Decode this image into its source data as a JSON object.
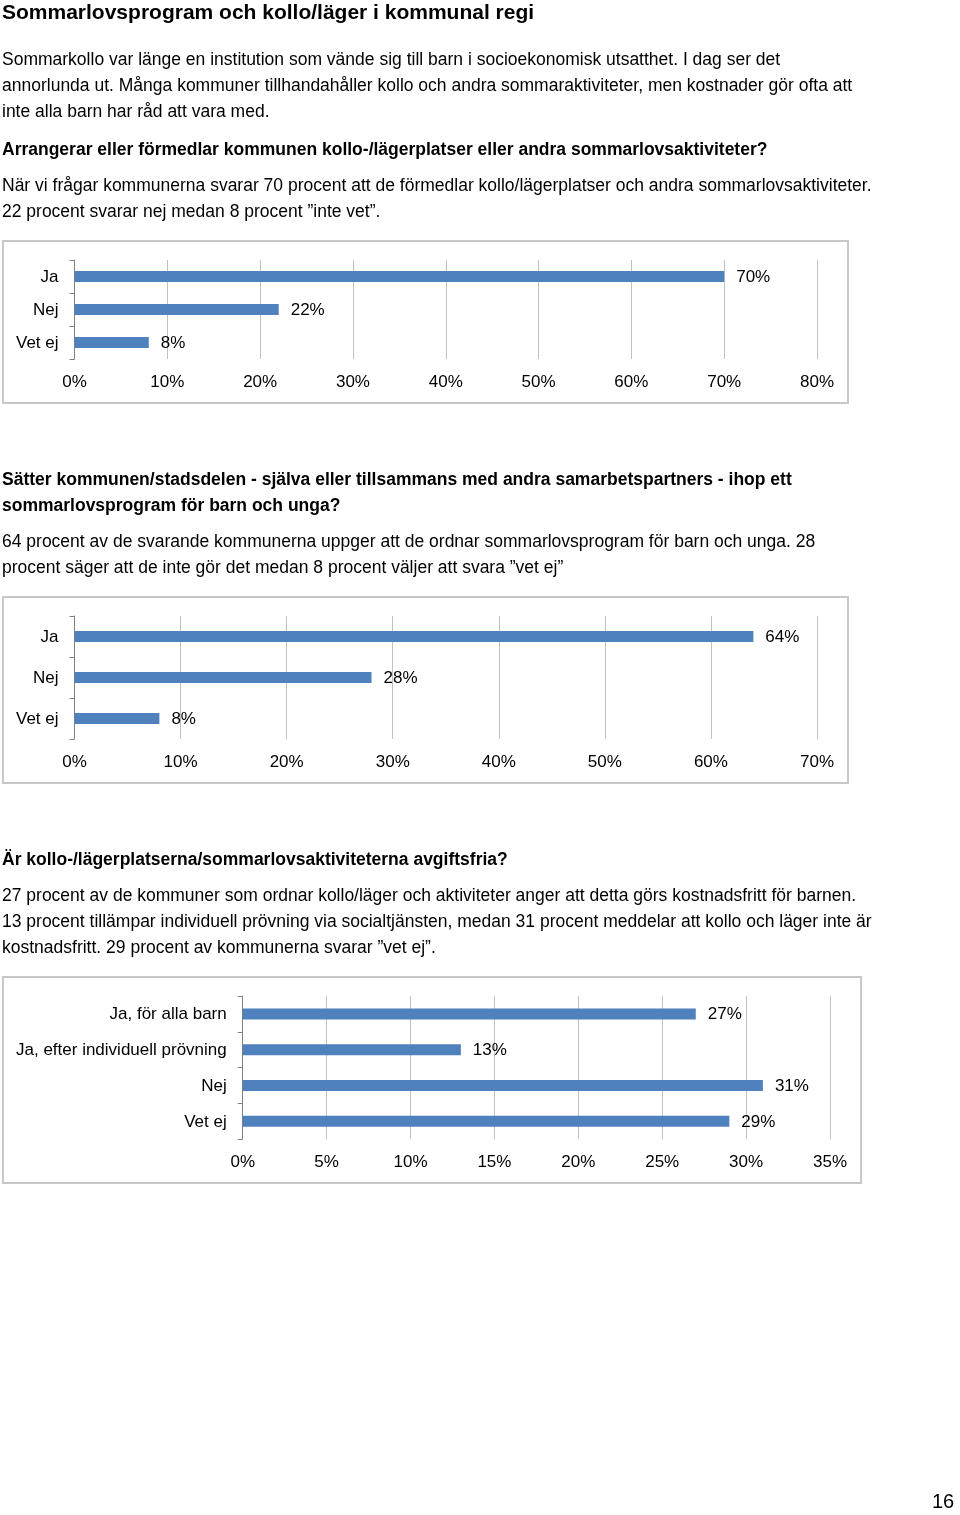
{
  "chart_data": [
    {
      "type": "bar",
      "orientation": "horizontal",
      "annotations": [
        "Sommarlovsprogram och kollo/läger i kommunal regi",
        "Sommarkollo var länge en institution som vände sig till barn i socioekonomisk utsatthet. I dag ser det annorlunda ut. Många kommuner tillhandahåller kollo och andra sommaraktiviteter, men kostnader gör ofta att inte alla barn har råd att vara med."
      ],
      "title": "Arrangerar eller förmedlar kommunen kollo-/lägerplatser eller andra sommarlovsaktiviteter?",
      "subtitle": "När vi frågar kommunerna svarar 70 procent att de förmedlar kollo/lägerplatser och andra sommarlovsaktiviteter. 22 procent svarar nej medan 8 procent ”inte vet”.",
      "categories": [
        "Ja",
        "Nej",
        "Vet ej"
      ],
      "values": [
        70,
        22,
        8
      ],
      "value_labels": [
        "70%",
        "22%",
        "8%"
      ],
      "color": "#4f81bd",
      "xlim": [
        0,
        80
      ],
      "xticks": [
        {
          "value": 0,
          "label": "0%"
        },
        {
          "value": 10,
          "label": "10%"
        },
        {
          "value": 20,
          "label": "20%"
        },
        {
          "value": 30,
          "label": "30%"
        },
        {
          "value": 40,
          "label": "40%"
        },
        {
          "value": 50,
          "label": "50%"
        },
        {
          "value": 60,
          "label": "60%"
        },
        {
          "value": 70,
          "label": "70%"
        },
        {
          "value": 80,
          "label": "80%"
        }
      ],
      "grid": "x"
    },
    {
      "type": "bar",
      "orientation": "horizontal",
      "title": "Sätter kommunen/stadsdelen - själva eller tillsammans med andra samarbetspartners - ihop ett sommarlovsprogram för barn och unga?",
      "subtitle": "64 procent av de svarande kommunerna uppger att de ordnar sommarlovsprogram för barn och unga. 28 procent säger att de inte gör det medan 8 procent väljer att svara ”vet ej”",
      "categories": [
        "Ja",
        "Nej",
        "Vet ej"
      ],
      "values": [
        64,
        28,
        8
      ],
      "value_labels": [
        "64%",
        "28%",
        "8%"
      ],
      "color": "#4f81bd",
      "xlim": [
        0,
        70
      ],
      "xticks": [
        {
          "value": 0,
          "label": "0%"
        },
        {
          "value": 10,
          "label": "10%"
        },
        {
          "value": 20,
          "label": "20%"
        },
        {
          "value": 30,
          "label": "30%"
        },
        {
          "value": 40,
          "label": "40%"
        },
        {
          "value": 50,
          "label": "50%"
        },
        {
          "value": 60,
          "label": "60%"
        },
        {
          "value": 70,
          "label": "70%"
        }
      ],
      "grid": "x"
    },
    {
      "type": "bar",
      "orientation": "horizontal",
      "title": "Är kollo-/lägerplatserna/sommarlovsaktiviteterna avgiftsfria?",
      "subtitle": "27 procent av de kommuner som ordnar kollo/läger och aktiviteter anger att detta görs kostnadsfritt för barnen. 13 procent tillämpar individuell prövning via socialtjänsten, medan 31 procent meddelar att kollo och läger inte är kostnadsfritt. 29 procent av kommunerna svarar ”vet ej”.",
      "annotations": [
        "16"
      ],
      "categories": [
        "Ja, för alla barn",
        "Ja, efter individuell prövning",
        "Nej",
        "Vet ej"
      ],
      "values": [
        27,
        13,
        31,
        29
      ],
      "value_labels": [
        "27%",
        "13%",
        "31%",
        "29%"
      ],
      "color": "#4f81bd",
      "xlim": [
        0,
        35
      ],
      "xticks": [
        {
          "value": 0,
          "label": "0%"
        },
        {
          "value": 5,
          "label": "5%"
        },
        {
          "value": 10,
          "label": "10%"
        },
        {
          "value": 15,
          "label": "15%"
        },
        {
          "value": 20,
          "label": "20%"
        },
        {
          "value": 25,
          "label": "25%"
        },
        {
          "value": 30,
          "label": "30%"
        },
        {
          "value": 35,
          "label": "35%"
        }
      ],
      "grid": "x"
    }
  ]
}
